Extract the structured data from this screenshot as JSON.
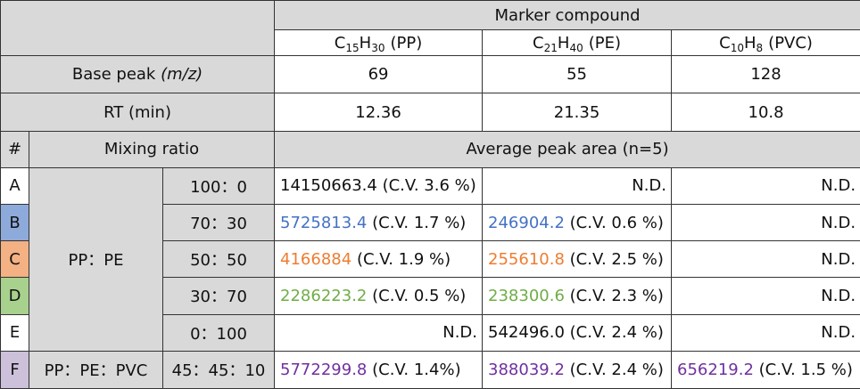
{
  "table": {
    "header": {
      "group": "Marker compound",
      "compounds": [
        {
          "e1": "C",
          "n1": "15",
          "e2": "H",
          "n2": "30",
          "label": "(PP)"
        },
        {
          "e1": "C",
          "n1": "21",
          "e2": "H",
          "n2": "40",
          "label": "(PE)"
        },
        {
          "e1": "C",
          "n1": "10",
          "e2": "H",
          "n2": "8",
          "label": "(PVC)"
        }
      ]
    },
    "base_peak": {
      "label": "Base peak",
      "unit": "(m/z)",
      "values": [
        69,
        55,
        128
      ]
    },
    "rt": {
      "label": "RT (min)",
      "values": [
        12.36,
        21.35,
        10.8
      ]
    },
    "columns": {
      "index": "#",
      "ratio": "Mixing ratio",
      "area": "Average peak area (n=5)"
    },
    "groups": [
      "PP：PE",
      "PP：PE：PVC"
    ],
    "rows": [
      {
        "id": "A",
        "ratio": "100：0",
        "cells": [
          {
            "area": "14150663.4",
            "cv": "(C.V. 3.6 %)"
          },
          {
            "nd": "N.D."
          },
          {
            "nd": "N.D."
          }
        ]
      },
      {
        "id": "B",
        "ratio": "70：30",
        "cells": [
          {
            "area": "5725813.4",
            "cv": "(C.V. 1.7 %)"
          },
          {
            "area": "246904.2",
            "cv": "(C.V. 0.6 %)"
          },
          {
            "nd": "N.D."
          }
        ]
      },
      {
        "id": "C",
        "ratio": "50：50",
        "cells": [
          {
            "area": "4166884",
            "cv": "(C.V. 1.9 %)"
          },
          {
            "area": "255610.8",
            "cv": "(C.V. 2.5 %)"
          },
          {
            "nd": "N.D."
          }
        ]
      },
      {
        "id": "D",
        "ratio": "30：70",
        "cells": [
          {
            "area": "2286223.2",
            "cv": "(C.V. 0.5 %)"
          },
          {
            "area": "238300.6",
            "cv": "(C.V. 2.3 %)"
          },
          {
            "nd": "N.D."
          }
        ]
      },
      {
        "id": "E",
        "ratio": "0：100",
        "cells": [
          {
            "nd": "N.D."
          },
          {
            "area": "542496.0",
            "cv": "(C.V. 2.4 %)"
          },
          {
            "nd": "N.D."
          }
        ]
      },
      {
        "id": "F",
        "ratio": "45：45：10",
        "cells": [
          {
            "area": "5772299.8",
            "cv": "(C.V. 1.4%)"
          },
          {
            "area": "388039.2",
            "cv": "(C.V. 2.4 %)"
          },
          {
            "area": "656219.2",
            "cv": "(C.V. 1.5 %)"
          }
        ]
      }
    ]
  }
}
